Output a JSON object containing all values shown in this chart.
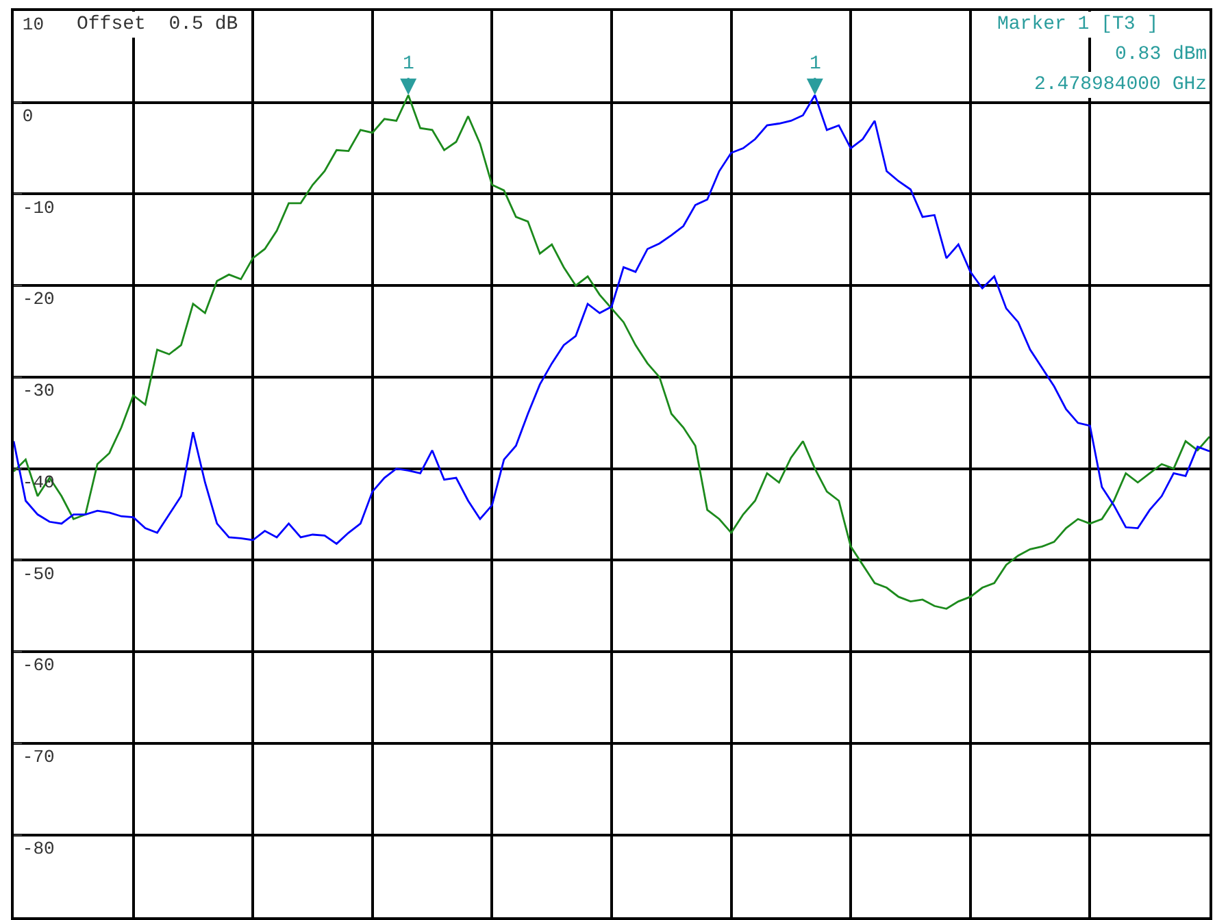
{
  "chart_data": {
    "type": "line",
    "categories": [
      null,
      null,
      null,
      null,
      null,
      null,
      null,
      null,
      null,
      null,
      null,
      null,
      null,
      null,
      null,
      null,
      null,
      null,
      null,
      null,
      null,
      null,
      null,
      null,
      null,
      null,
      null,
      null,
      null,
      null,
      null,
      null,
      null,
      null,
      null,
      null,
      null,
      null,
      null,
      null,
      null,
      null,
      null,
      null,
      null,
      null,
      null,
      null,
      null,
      null,
      null,
      null,
      null,
      null,
      null,
      null,
      null,
      null,
      null,
      null,
      null,
      null,
      null,
      null,
      null,
      null,
      null,
      null,
      null,
      null,
      null,
      null,
      null,
      null,
      null,
      null,
      null,
      null,
      null,
      null,
      null,
      null,
      null,
      null,
      null,
      null,
      null,
      null,
      null,
      null,
      null,
      null,
      null,
      null,
      null,
      null,
      null,
      null,
      null,
      null,
      null
    ],
    "series": [
      {
        "color": "#1c8a1c",
        "values": [
          -40.3,
          -39,
          -43,
          -41,
          -43,
          -45.5,
          -45,
          -39.5,
          -38.3,
          -35.5,
          -32,
          -33,
          -27,
          -27.5,
          -26.5,
          -22,
          -23,
          -19.5,
          -18.8,
          -19.3,
          -17,
          -16,
          -14,
          -11,
          -11,
          -9,
          -7.5,
          -5.2,
          -5.3,
          -3,
          -3.3,
          -1.8,
          -2,
          0.8,
          -2.8,
          -3,
          -5.2,
          -4.3,
          -1.5,
          -4.5,
          -9,
          -9.6,
          -12.5,
          -13,
          -16.5,
          -15.5,
          -18,
          -20,
          -19,
          -21,
          -22.5,
          -24,
          -26.5,
          -28.5,
          -30,
          -34,
          -35.5,
          -37.5,
          -44.5,
          -45.5,
          -47,
          -45,
          -43.5,
          -40.5,
          -41.5,
          -38.8,
          -37,
          -40,
          -42.5,
          -43.5,
          -48.5,
          -50.5,
          -52.5,
          -53,
          -54,
          -54.5,
          -54.3,
          -55,
          -55.3,
          -54.5,
          -54,
          -53,
          -52.5,
          -50.5,
          -49.5,
          -48.8,
          -48.5,
          -48,
          -46.5,
          -45.5,
          -46,
          -45.5,
          -43.5,
          -40.5,
          -41.5,
          -40.5,
          -39.5,
          -40,
          -37,
          -38,
          -36.5
        ]
      },
      {
        "color": "#0000ff",
        "values": [
          -37,
          -43.5,
          -45,
          -45.8,
          -46,
          -45,
          -45,
          -44.6,
          -44.8,
          -45.2,
          -45.3,
          -46.5,
          -47,
          -45,
          -43,
          -36,
          -41.5,
          -46,
          -47.5,
          -47.6,
          -47.8,
          -46.8,
          -47.5,
          -46,
          -47.5,
          -47.2,
          -47.3,
          -48.2,
          -47,
          -46,
          -42.5,
          -41,
          -40,
          -40.2,
          -40.5,
          -38,
          -41.2,
          -41,
          -43.5,
          -45.5,
          -44,
          -39,
          -37.5,
          -34,
          -30.8,
          -28.5,
          -26.5,
          -25.5,
          -22,
          -23,
          -22.3,
          -18,
          -18.5,
          -16,
          -15.4,
          -14.5,
          -13.5,
          -11.2,
          -10.6,
          -7.5,
          -5.5,
          -5,
          -4,
          -2.5,
          -2.3,
          -2,
          -1.4,
          0.8,
          -3,
          -2.5,
          -5,
          -4,
          -2,
          -7.5,
          -8.6,
          -9.5,
          -12.5,
          -12.3,
          -17,
          -15.5,
          -18.5,
          -20.3,
          -19,
          -22.5,
          -24,
          -27,
          -29,
          -31,
          -33.5,
          -35,
          -35.3,
          -42,
          -44,
          -46.4,
          -46.5,
          -44.5,
          -43,
          -40.5,
          -40.8,
          -37.6,
          -38.1
        ]
      }
    ],
    "ylim": [
      -89,
      10
    ],
    "yticks": [
      10,
      0,
      -10,
      -20,
      -30,
      -40,
      -50,
      -60,
      -70,
      -80
    ],
    "grid": true,
    "legend": false,
    "marker": "none",
    "line_style": "solid",
    "annotations": [
      "Offset  0.5 dB",
      "Marker 1 [T3 ]",
      "0.83 dBm",
      "2.478984000 GHz",
      {
        "text": "1",
        "y": 0.83
      },
      {
        "text": "1",
        "y": 0.83
      }
    ]
  }
}
